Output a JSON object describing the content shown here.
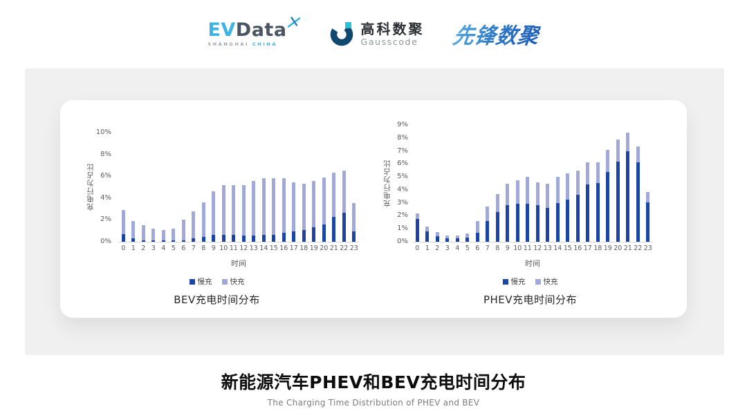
{
  "header": {
    "evdata": {
      "part1": "EV",
      "part2": "Data",
      "tagline_left": "SHANGHAI",
      "tagline_right": "CHINA"
    },
    "gausscode": {
      "name_cn": "高科数聚",
      "name_en": "Gausscode"
    },
    "pioneer": {
      "name": "先锋数聚"
    }
  },
  "footer": {
    "title": "新能源汽车PHEV和BEV充电时间分布",
    "subtitle": "The Charging Time Distribution of PHEV and BEV"
  },
  "colors": {
    "slow": "#1c44a4",
    "fast": "#a0a9d8",
    "accent_blue": "#3cb4e5"
  },
  "chart_data": [
    {
      "type": "bar",
      "stacked": true,
      "title": "BEV充电时间分布",
      "xlabel": "时间",
      "ylabel": "充电行为占比",
      "ylim": [
        0,
        10
      ],
      "yticks": [
        0,
        2,
        4,
        6,
        8,
        10
      ],
      "grid": false,
      "legend_position": "bottom",
      "categories": [
        "0",
        "1",
        "2",
        "3",
        "4",
        "5",
        "6",
        "7",
        "8",
        "9",
        "10",
        "11",
        "12",
        "13",
        "14",
        "15",
        "16",
        "17",
        "18",
        "19",
        "20",
        "21",
        "22",
        "23"
      ],
      "series": [
        {
          "name": "慢充",
          "color": "#1c44a4",
          "values": [
            0.7,
            0.3,
            0.15,
            0.1,
            0.1,
            0.1,
            0.15,
            0.3,
            0.45,
            0.65,
            0.65,
            0.65,
            0.6,
            0.6,
            0.65,
            0.65,
            0.8,
            0.95,
            1.05,
            1.3,
            1.6,
            2.3,
            2.65,
            0.95
          ]
        },
        {
          "name": "快充",
          "color": "#a0a9d8",
          "values": [
            2.2,
            1.6,
            1.35,
            1.1,
            1.0,
            1.1,
            1.85,
            2.5,
            3.15,
            3.95,
            4.55,
            4.55,
            4.6,
            5.0,
            5.15,
            5.15,
            5.0,
            4.5,
            4.25,
            4.25,
            4.3,
            4.0,
            3.85,
            2.6
          ]
        }
      ]
    },
    {
      "type": "bar",
      "stacked": true,
      "title": "PHEV充电时间分布",
      "xlabel": "时间",
      "ylabel": "充电行为占比",
      "ylim": [
        0,
        9
      ],
      "yticks": [
        0,
        1,
        2,
        3,
        4,
        5,
        6,
        7,
        8,
        9
      ],
      "grid": false,
      "legend_position": "bottom",
      "categories": [
        "0",
        "1",
        "2",
        "3",
        "4",
        "5",
        "6",
        "7",
        "8",
        "9",
        "10",
        "11",
        "12",
        "13",
        "14",
        "15",
        "16",
        "17",
        "18",
        "19",
        "20",
        "21",
        "22",
        "23"
      ],
      "series": [
        {
          "name": "慢充",
          "color": "#1c44a4",
          "values": [
            1.75,
            0.8,
            0.45,
            0.25,
            0.25,
            0.3,
            0.7,
            1.6,
            2.3,
            2.8,
            2.95,
            2.95,
            2.8,
            2.6,
            3.0,
            3.25,
            3.6,
            4.4,
            4.55,
            5.4,
            6.2,
            7.0,
            6.15,
            3.05
          ]
        },
        {
          "name": "快充",
          "color": "#a0a9d8",
          "values": [
            0.45,
            0.35,
            0.3,
            0.25,
            0.25,
            0.35,
            0.9,
            1.1,
            1.35,
            1.7,
            1.8,
            2.05,
            1.8,
            1.9,
            2.0,
            2.0,
            1.9,
            1.7,
            1.55,
            1.7,
            1.7,
            1.4,
            1.2,
            0.8
          ]
        }
      ]
    }
  ]
}
